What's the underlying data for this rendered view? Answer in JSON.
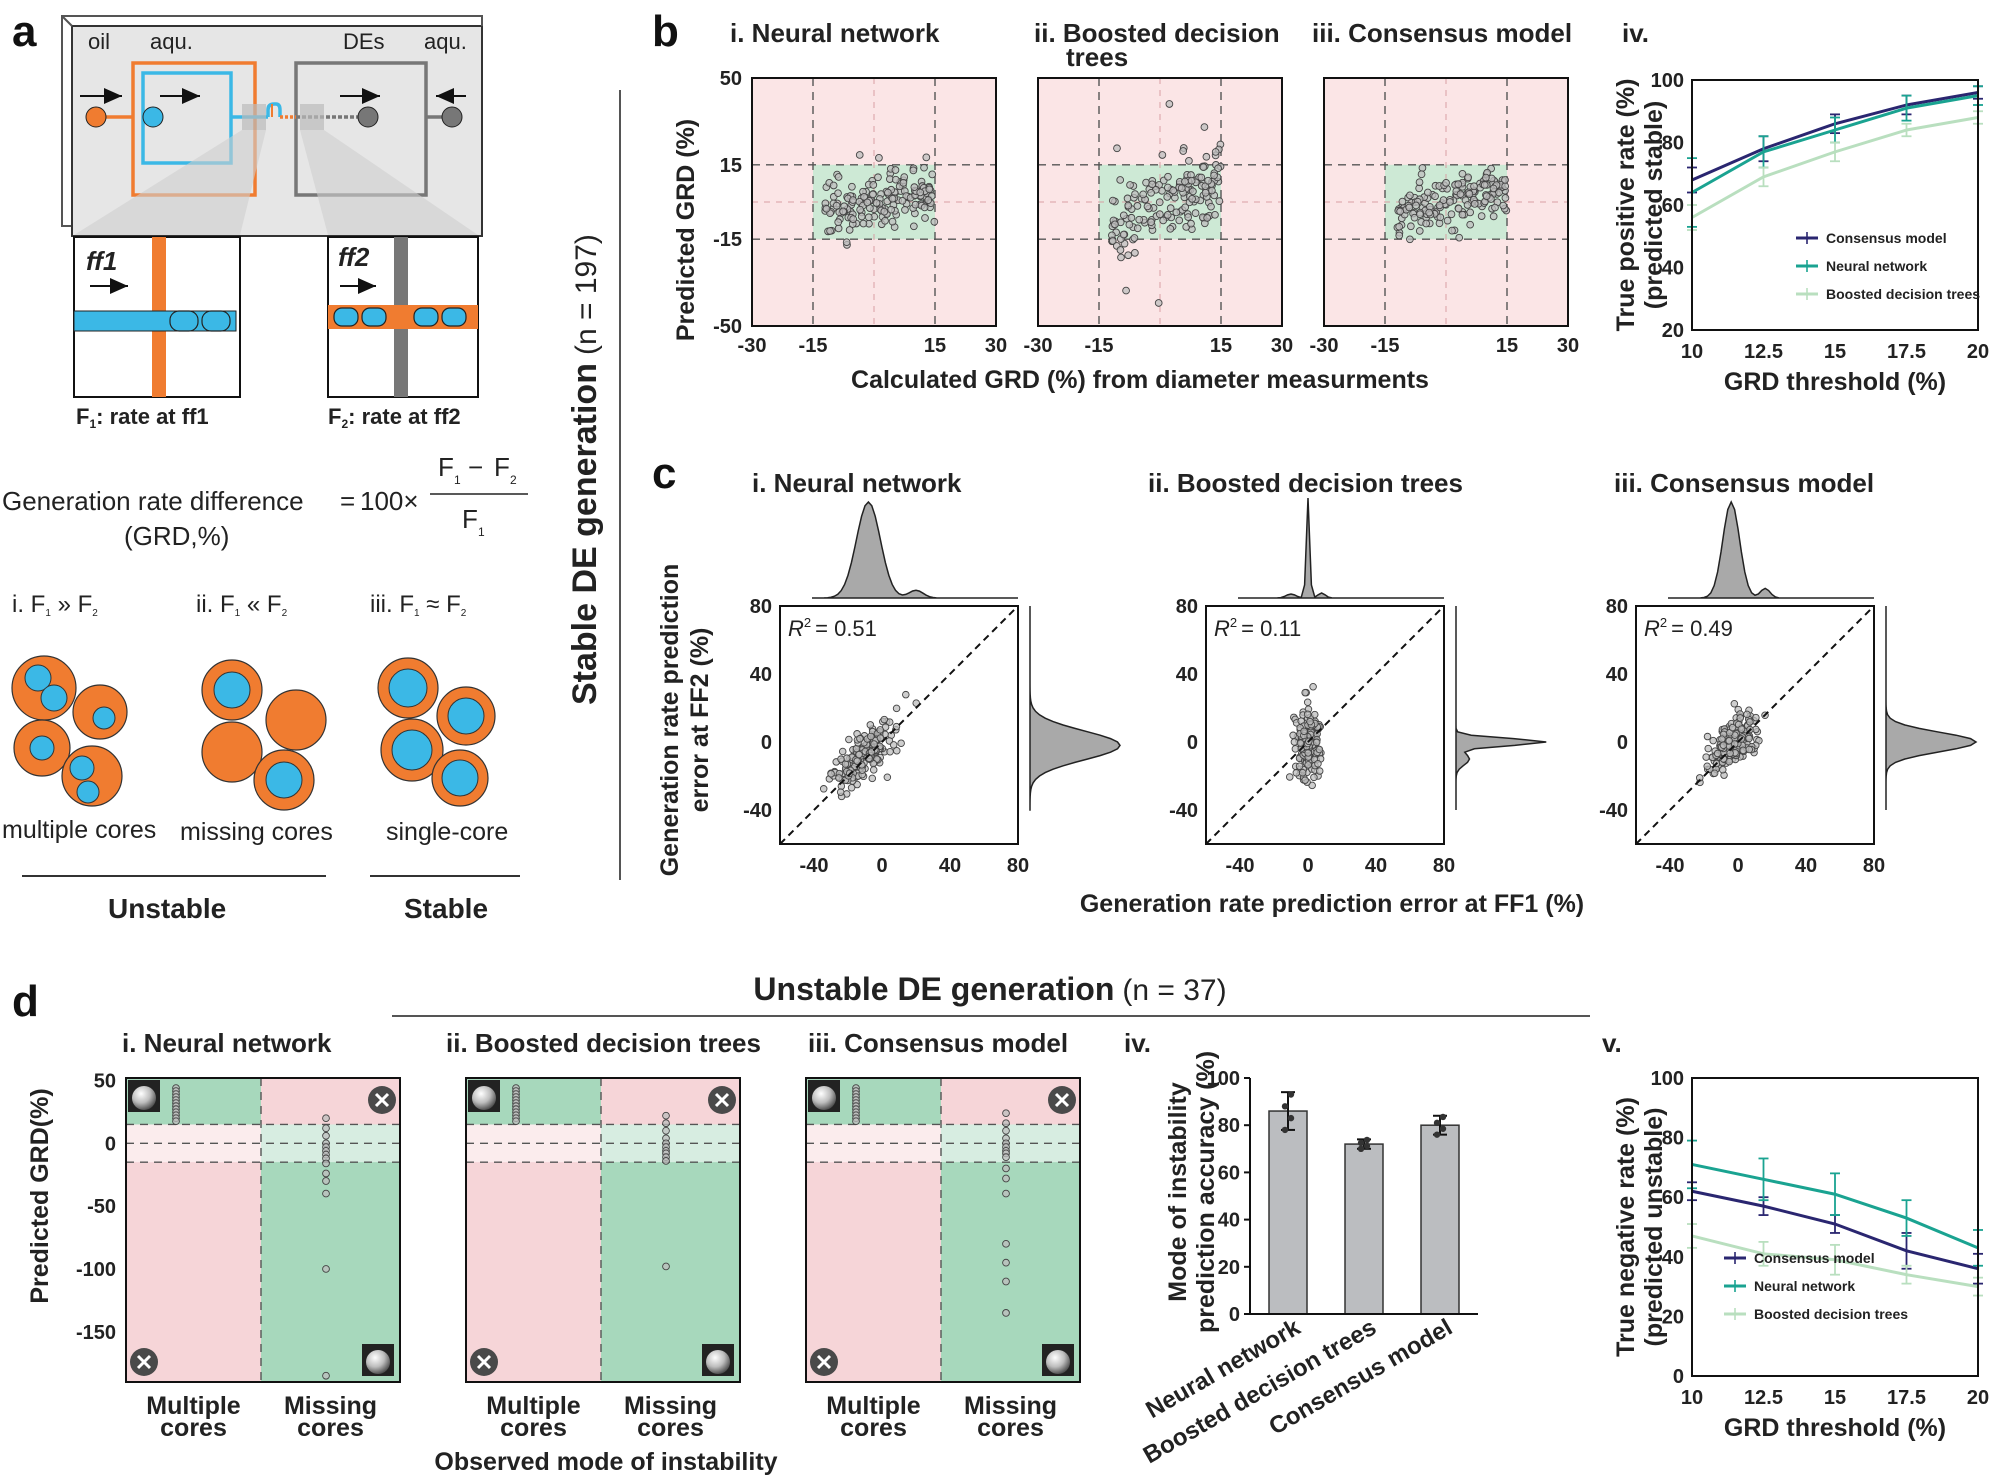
{
  "panels": {
    "a": "a",
    "b": "b",
    "c": "c",
    "d": "d"
  },
  "panel_a": {
    "labels": {
      "oil": "oil",
      "aqu1": "aqu.",
      "des": "DEs",
      "aqu2": "aqu."
    },
    "junctions": {
      "ff1": "ff1",
      "ff2": "ff2"
    },
    "rates": {
      "f1_rate": "rate at ff1",
      "f2_rate": "rate at ff2",
      "f1": "F",
      "f2": "F",
      "sub1": "1",
      "sub2": "2"
    },
    "formula": {
      "lhs": "Generation rate difference",
      "unit": "(GRD,%)",
      "eq": "=",
      "factor": "100×",
      "num_a": "F",
      "num_op": "−",
      "num_b": "F",
      "den": "F"
    },
    "cases": [
      {
        "roman": "i.",
        "relation": "»",
        "caption": "multiple cores"
      },
      {
        "roman": "ii.",
        "relation": "«",
        "caption": "missing cores"
      },
      {
        "roman": "iii.",
        "relation": "≈",
        "caption": "single-core"
      }
    ],
    "groups": {
      "unstable": "Unstable",
      "stable": "Stable"
    }
  },
  "panel_b": {
    "vertical_title": "Stable DE generation",
    "vertical_n": "(n = 197)",
    "subtitles": [
      "i. Neural network",
      "ii. Boosted decision",
      "trees",
      "iii. Consensus model",
      "iv."
    ],
    "ylabel": "Predicted GRD (%)",
    "xlabel": "Calculated GRD (%) from diameter measurments",
    "xticks": [
      "-30",
      "-15",
      "15",
      "30"
    ],
    "yticks": [
      "50",
      "15",
      "-15",
      "-50"
    ]
  },
  "panel_c": {
    "subtitles": [
      "i. Neural network",
      "ii. Boosted decision trees",
      "iii. Consensus model"
    ],
    "ylabel_1": "Generation rate prediction",
    "ylabel_2": "error at FF2 (%)",
    "xlabel": "Generation rate prediction error at FF1 (%)",
    "r2_prefix": "R",
    "r2_sup": "2",
    "r2_values": [
      "= 0.51",
      "= 0.11",
      "= 0.49"
    ],
    "xticks": [
      "-40",
      "0",
      "40",
      "80"
    ],
    "yticks": [
      "80",
      "40",
      "0",
      "-40"
    ]
  },
  "panel_d": {
    "title": "Unstable DE generation",
    "title_n": "(n = 37)",
    "subtitles": [
      "i. Neural network",
      "ii. Boosted decision trees",
      "iii. Consensus model",
      "iv.",
      "v."
    ],
    "ylabel": "Predicted GRD(%)",
    "yticks": [
      "50",
      "0",
      "-50",
      "-100",
      "-150"
    ],
    "cat1": [
      "Multiple",
      "cores"
    ],
    "cat2": [
      "Missing",
      "cores"
    ],
    "xlabel": "Observed mode of instability",
    "bar_ylabel_1": "Mode of instability",
    "bar_ylabel_2": "prediction accuracy (%)"
  },
  "chart_data": [
    {
      "type": "line",
      "title": "iv.",
      "xlabel": "GRD threshold (%)",
      "ylabel": "True positive rate (%) (predicted stable)",
      "x": [
        "10",
        "12.5",
        "15",
        "17.5",
        "20"
      ],
      "xlim": [
        10,
        20
      ],
      "ylim": [
        20,
        100
      ],
      "yticks": [
        "20",
        "40",
        "60",
        "80",
        "100"
      ],
      "series": [
        {
          "name": "Consensus model",
          "color": "#2a2670",
          "values": [
            68,
            78,
            86,
            92,
            96
          ],
          "err": [
            4,
            4,
            3,
            3,
            2
          ]
        },
        {
          "name": "Neural network",
          "color": "#1aa391",
          "values": [
            64,
            77,
            84,
            91,
            95
          ],
          "err": [
            11,
            5,
            4,
            4,
            3
          ]
        },
        {
          "name": "Boosted decision trees",
          "color": "#b9dfbf",
          "values": [
            56,
            69,
            77,
            84,
            88
          ],
          "err": [
            4,
            3,
            3,
            2,
            2
          ]
        }
      ]
    },
    {
      "type": "bar",
      "title": "iv.",
      "ylabel": "Mode of instability prediction accuracy (%)",
      "categories": [
        "Neural network",
        "Boosted decision trees",
        "Consensus model"
      ],
      "values": [
        86,
        72,
        80
      ],
      "err": [
        8,
        2,
        4
      ],
      "ylim": [
        0,
        100
      ],
      "yticks": [
        "0",
        "20",
        "40",
        "60",
        "80",
        "100"
      ]
    },
    {
      "type": "line",
      "title": "v.",
      "xlabel": "GRD threshold (%)",
      "ylabel": "True negative rate (%) (predicted unstable)",
      "x": [
        "10",
        "12.5",
        "15",
        "17.5",
        "20"
      ],
      "xlim": [
        10,
        20
      ],
      "ylim": [
        0,
        100
      ],
      "yticks": [
        "0",
        "20",
        "40",
        "60",
        "80",
        "100"
      ],
      "series": [
        {
          "name": "Consensus model",
          "color": "#2a2670",
          "values": [
            62,
            57,
            51,
            42,
            36
          ],
          "err": [
            3,
            3,
            3,
            6,
            5
          ]
        },
        {
          "name": "Neural network",
          "color": "#1aa391",
          "values": [
            71,
            66,
            61,
            53,
            43
          ],
          "err": [
            8,
            7,
            7,
            6,
            6
          ]
        },
        {
          "name": "Boosted decision trees",
          "color": "#b9dfbf",
          "values": [
            47,
            41,
            39,
            34,
            30
          ],
          "err": [
            4,
            4,
            5,
            3,
            3
          ]
        }
      ]
    }
  ]
}
